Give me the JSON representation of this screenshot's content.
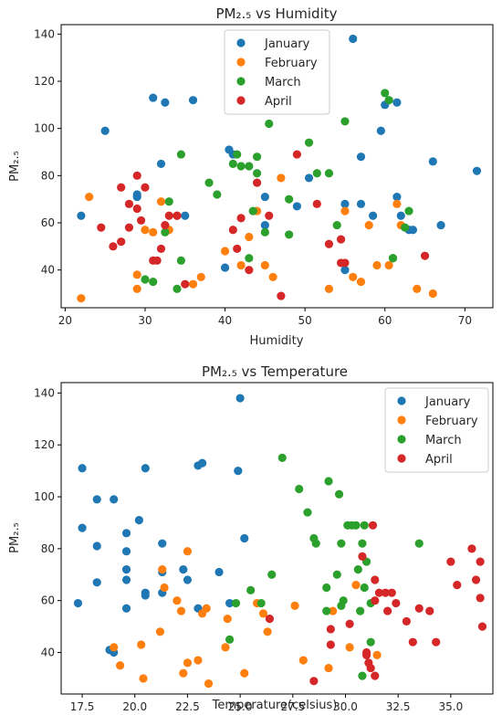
{
  "chart_data": [
    {
      "type": "scatter",
      "title": "PM₂.₅ vs Humidity",
      "xlabel": "Humidity",
      "ylabel": "PM₂.₅",
      "xlim": [
        19.5,
        73.5
      ],
      "ylim": [
        24,
        144
      ],
      "xticks": [
        20,
        30,
        40,
        50,
        60,
        70
      ],
      "yticks": [
        40,
        60,
        80,
        100,
        120,
        140
      ],
      "grid": false,
      "legend_position": "top-center",
      "series": [
        {
          "name": "January",
          "color": "#1f77b4",
          "points": [
            [
              22,
              63
            ],
            [
              25,
              99
            ],
            [
              29,
              71
            ],
            [
              29,
              72
            ],
            [
              31,
              113
            ],
            [
              32,
              85
            ],
            [
              32.5,
              111
            ],
            [
              35,
              63
            ],
            [
              36,
              112
            ],
            [
              40,
              41
            ],
            [
              40.5,
              91
            ],
            [
              41,
              89
            ],
            [
              45,
              71
            ],
            [
              45,
              59
            ],
            [
              49,
              67
            ],
            [
              50.5,
              79
            ],
            [
              55,
              68
            ],
            [
              55,
              40
            ],
            [
              56,
              138
            ],
            [
              57,
              68
            ],
            [
              57,
              88
            ],
            [
              58.5,
              63
            ],
            [
              59.5,
              99
            ],
            [
              60,
              110
            ],
            [
              61.5,
              111
            ],
            [
              61.5,
              71
            ],
            [
              62,
              63
            ],
            [
              63,
              57
            ],
            [
              63.5,
              57
            ],
            [
              66,
              86
            ],
            [
              67,
              59
            ],
            [
              71.5,
              82
            ]
          ]
        },
        {
          "name": "February",
          "color": "#ff7f0e",
          "points": [
            [
              22,
              28
            ],
            [
              23,
              71
            ],
            [
              29,
              38
            ],
            [
              29,
              32
            ],
            [
              30,
              57
            ],
            [
              31,
              56
            ],
            [
              32,
              69
            ],
            [
              33,
              57
            ],
            [
              34,
              63
            ],
            [
              36,
              34
            ],
            [
              37,
              37
            ],
            [
              40,
              48
            ],
            [
              42,
              42
            ],
            [
              43,
              54
            ],
            [
              44,
              65
            ],
            [
              45,
              42
            ],
            [
              46,
              37
            ],
            [
              47,
              79
            ],
            [
              53,
              32
            ],
            [
              55,
              65
            ],
            [
              56,
              37
            ],
            [
              57,
              35
            ],
            [
              58,
              59
            ],
            [
              59,
              42
            ],
            [
              60.5,
              42
            ],
            [
              61.5,
              68
            ],
            [
              62,
              59
            ],
            [
              64,
              32
            ],
            [
              66,
              30
            ]
          ]
        },
        {
          "name": "March",
          "color": "#2ca02c",
          "points": [
            [
              30,
              36
            ],
            [
              31,
              35
            ],
            [
              32.5,
              56
            ],
            [
              33,
              69
            ],
            [
              34,
              32
            ],
            [
              34.5,
              89
            ],
            [
              34.5,
              44
            ],
            [
              38,
              77
            ],
            [
              39,
              72
            ],
            [
              41,
              85
            ],
            [
              41.5,
              89
            ],
            [
              42,
              84
            ],
            [
              43,
              84
            ],
            [
              43.5,
              65
            ],
            [
              44,
              81
            ],
            [
              43,
              45
            ],
            [
              44,
              88
            ],
            [
              45,
              56
            ],
            [
              45.5,
              102
            ],
            [
              48,
              70
            ],
            [
              48,
              55
            ],
            [
              50.5,
              94
            ],
            [
              51.5,
              81
            ],
            [
              53,
              81
            ],
            [
              54,
              59
            ],
            [
              55,
              103
            ],
            [
              60,
              115
            ],
            [
              60.5,
              112
            ],
            [
              61,
              45
            ],
            [
              62.5,
              58
            ],
            [
              63,
              65
            ],
            [
              61,
              45
            ]
          ]
        },
        {
          "name": "April",
          "color": "#d62728",
          "points": [
            [
              24.5,
              58
            ],
            [
              26,
              50
            ],
            [
              27,
              52
            ],
            [
              27,
              75
            ],
            [
              28,
              68
            ],
            [
              29,
              80
            ],
            [
              29,
              66
            ],
            [
              28,
              58
            ],
            [
              29.5,
              61
            ],
            [
              30,
              75
            ],
            [
              31,
              44
            ],
            [
              31.5,
              44
            ],
            [
              32,
              49
            ],
            [
              32.5,
              59
            ],
            [
              33,
              63
            ],
            [
              34,
              63
            ],
            [
              35,
              34
            ],
            [
              41,
              57
            ],
            [
              41.5,
              49
            ],
            [
              42,
              62
            ],
            [
              43,
              40
            ],
            [
              44,
              77
            ],
            [
              45.5,
              63
            ],
            [
              47,
              29
            ],
            [
              49,
              89
            ],
            [
              51.5,
              68
            ],
            [
              53,
              51
            ],
            [
              54.5,
              53
            ],
            [
              54.5,
              43
            ],
            [
              55,
              43
            ],
            [
              65,
              46
            ]
          ]
        }
      ]
    },
    {
      "type": "scatter",
      "title": "PM₂.₅ vs Temperature",
      "xlabel": "Temperature(celsius)",
      "ylabel": "PM₂.₅",
      "xlim": [
        16.5,
        37
      ],
      "ylim": [
        24,
        144
      ],
      "xticks": [
        17.5,
        20.0,
        22.5,
        25.0,
        27.5,
        30.0,
        32.5,
        35.0
      ],
      "yticks": [
        40,
        60,
        80,
        100,
        120,
        140
      ],
      "grid": false,
      "legend_position": "top-right",
      "series": [
        {
          "name": "January",
          "color": "#1f77b4",
          "points": [
            [
              17.3,
              59
            ],
            [
              17.5,
              88
            ],
            [
              17.5,
              111
            ],
            [
              18.2,
              99
            ],
            [
              18.2,
              81
            ],
            [
              18.2,
              67
            ],
            [
              18.8,
              41
            ],
            [
              19,
              99
            ],
            [
              19,
              40
            ],
            [
              19.6,
              86
            ],
            [
              19.6,
              79
            ],
            [
              19.6,
              72
            ],
            [
              19.6,
              68
            ],
            [
              19.6,
              57
            ],
            [
              20.2,
              91
            ],
            [
              20.5,
              63
            ],
            [
              20.5,
              62
            ],
            [
              20.5,
              111
            ],
            [
              21.3,
              82
            ],
            [
              21.3,
              71
            ],
            [
              21.3,
              63
            ],
            [
              22.3,
              72
            ],
            [
              22.5,
              68
            ],
            [
              23,
              112
            ],
            [
              23.2,
              113
            ],
            [
              23,
              57
            ],
            [
              24,
              71
            ],
            [
              24.5,
              59
            ],
            [
              24.9,
              110
            ],
            [
              25.2,
              84
            ],
            [
              25,
              138
            ]
          ]
        },
        {
          "name": "February",
          "color": "#ff7f0e",
          "points": [
            [
              19,
              42
            ],
            [
              19.3,
              35
            ],
            [
              20.3,
              43
            ],
            [
              20.4,
              30
            ],
            [
              21.2,
              48
            ],
            [
              21.3,
              72
            ],
            [
              21.4,
              65
            ],
            [
              22,
              60
            ],
            [
              22.2,
              56
            ],
            [
              22.3,
              32
            ],
            [
              22.5,
              36
            ],
            [
              22.5,
              79
            ],
            [
              23,
              37
            ],
            [
              23.2,
              55
            ],
            [
              23.4,
              57
            ],
            [
              23.5,
              28
            ],
            [
              24.3,
              42
            ],
            [
              24.4,
              53
            ],
            [
              25.2,
              32
            ],
            [
              25.8,
              59
            ],
            [
              26.1,
              55
            ],
            [
              26.3,
              48
            ],
            [
              27.6,
              58
            ],
            [
              28,
              37
            ],
            [
              29.2,
              34
            ],
            [
              29.4,
              56
            ],
            [
              30.2,
              42
            ],
            [
              30.5,
              66
            ],
            [
              31.5,
              39
            ]
          ]
        },
        {
          "name": "March",
          "color": "#2ca02c",
          "points": [
            [
              24.5,
              45
            ],
            [
              24.8,
              59
            ],
            [
              25.5,
              64
            ],
            [
              26,
              59
            ],
            [
              26.5,
              70
            ],
            [
              27,
              115
            ],
            [
              27.8,
              103
            ],
            [
              28.2,
              94
            ],
            [
              28.5,
              84
            ],
            [
              28.6,
              82
            ],
            [
              29.1,
              65
            ],
            [
              29.2,
              106
            ],
            [
              29.1,
              56
            ],
            [
              29.6,
              70
            ],
            [
              29.7,
              101
            ],
            [
              29.8,
              82
            ],
            [
              29.8,
              58
            ],
            [
              29.9,
              60
            ],
            [
              30.1,
              89
            ],
            [
              30.3,
              89
            ],
            [
              30.5,
              89
            ],
            [
              30.6,
              72
            ],
            [
              30.7,
              56
            ],
            [
              30.8,
              82
            ],
            [
              30.9,
              89
            ],
            [
              31,
              75
            ],
            [
              31.2,
              44
            ],
            [
              30.8,
              31
            ],
            [
              30.9,
              65
            ],
            [
              31.2,
              59
            ],
            [
              33.5,
              82
            ]
          ]
        },
        {
          "name": "April",
          "color": "#d62728",
          "points": [
            [
              26.4,
              53
            ],
            [
              28.5,
              29
            ],
            [
              29.3,
              49
            ],
            [
              29.3,
              43
            ],
            [
              30.2,
              51
            ],
            [
              30.8,
              77
            ],
            [
              31,
              39
            ],
            [
              31.1,
              36
            ],
            [
              31.2,
              34
            ],
            [
              31.3,
              89
            ],
            [
              31.4,
              68
            ],
            [
              31.4,
              60
            ],
            [
              31.6,
              63
            ],
            [
              31.9,
              63
            ],
            [
              32,
              56
            ],
            [
              32.4,
              59
            ],
            [
              32.9,
              52
            ],
            [
              33.2,
              44
            ],
            [
              33.5,
              57
            ],
            [
              34,
              56
            ],
            [
              34.3,
              44
            ],
            [
              35,
              75
            ],
            [
              35.3,
              66
            ],
            [
              36,
              80
            ],
            [
              36.2,
              68
            ],
            [
              36.4,
              75
            ],
            [
              36.4,
              61
            ],
            [
              36.5,
              50
            ],
            [
              31,
              40
            ],
            [
              31.4,
              31
            ],
            [
              32.2,
              63
            ]
          ]
        }
      ]
    }
  ]
}
